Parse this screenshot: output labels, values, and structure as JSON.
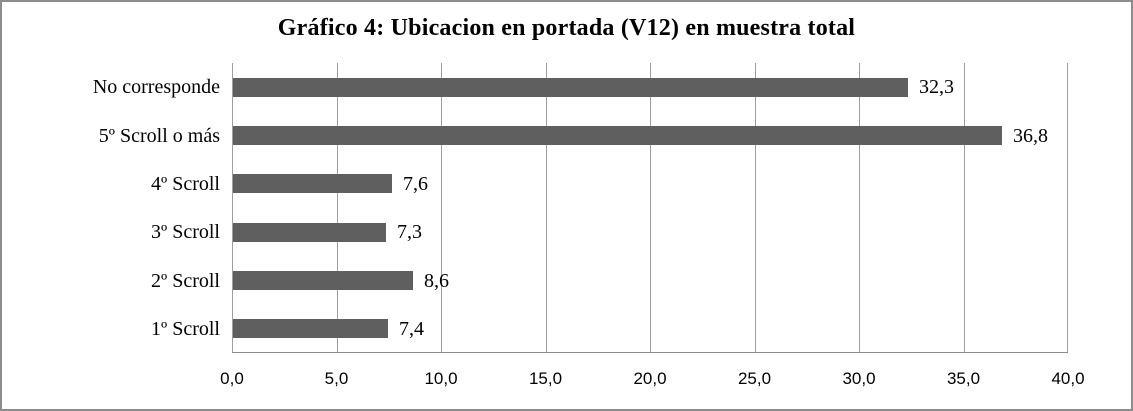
{
  "window": {
    "background": "#ffffff",
    "border_color": "#8c8c8c"
  },
  "chart_data": {
    "type": "bar",
    "orientation": "horizontal",
    "title": "Gráfico 4: Ubicacion en portada (V12) en muestra total",
    "categories": [
      "No corresponde",
      "5º Scroll o más",
      "4º Scroll",
      "3º Scroll",
      "2º Scroll",
      "1º Scroll"
    ],
    "values": [
      32.3,
      36.8,
      7.6,
      7.3,
      8.6,
      7.4
    ],
    "value_labels": [
      "32,3",
      "36,8",
      "7,6",
      "7,3",
      "8,6",
      "7,4"
    ],
    "xlabel": "",
    "ylabel": "",
    "xlim": [
      0,
      40
    ],
    "x_ticks": [
      0,
      5,
      10,
      15,
      20,
      25,
      30,
      35,
      40
    ],
    "x_tick_labels": [
      "0,0",
      "5,0",
      "10,0",
      "15,0",
      "20,0",
      "25,0",
      "30,0",
      "35,0",
      "40,0"
    ],
    "grid": true,
    "legend": "none",
    "bar_color": "#5f5f5f",
    "gridline_color": "#9e9e9e",
    "axis_color": "#8c8c8c"
  }
}
